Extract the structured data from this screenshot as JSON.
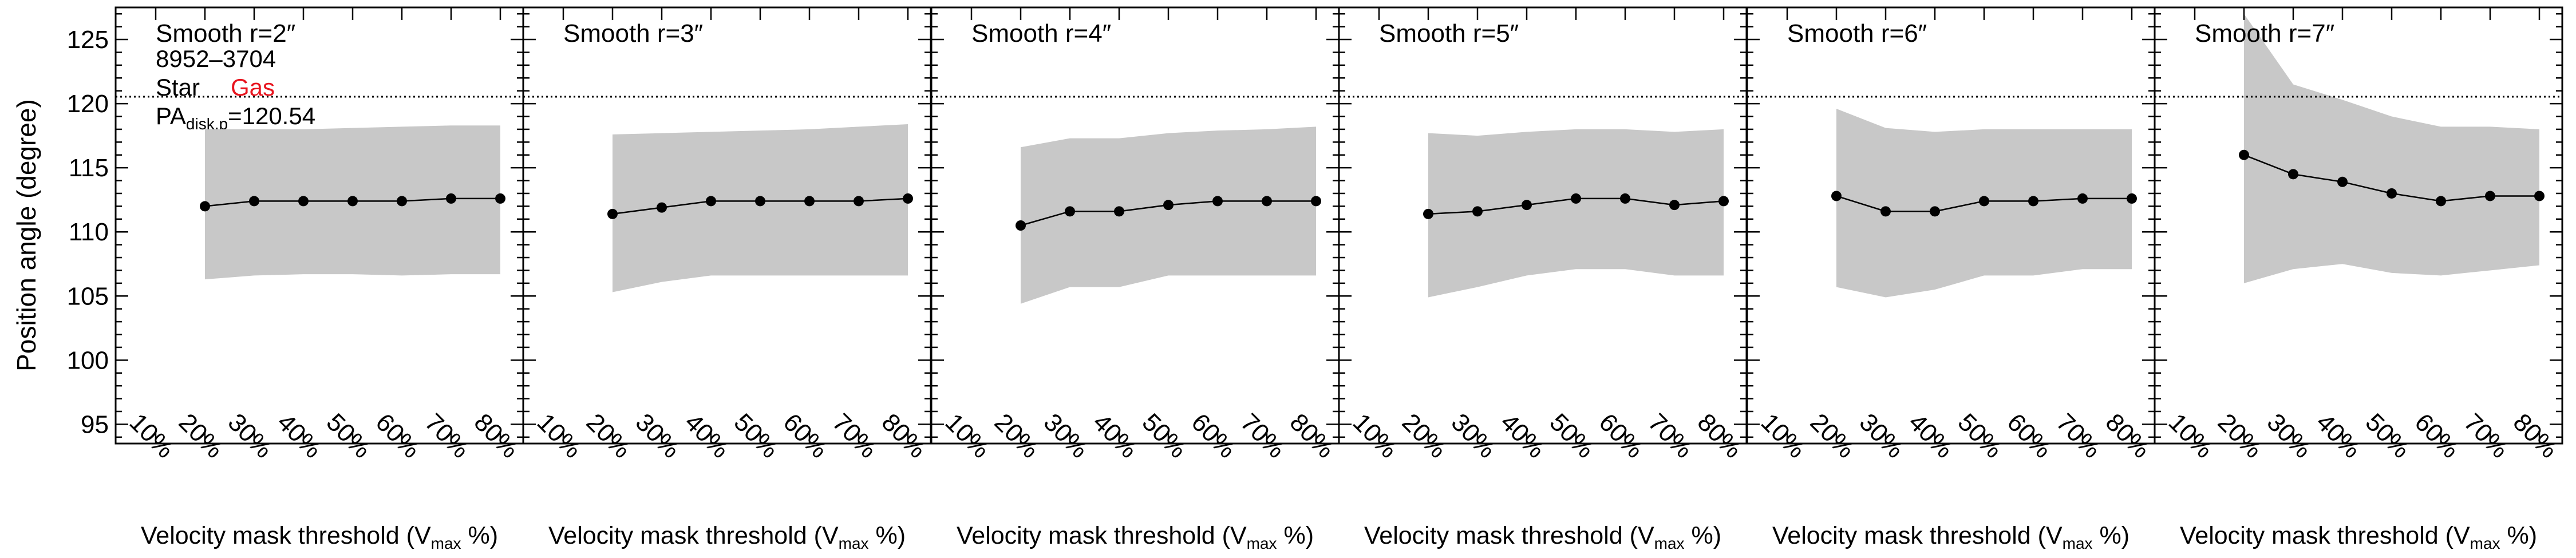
{
  "figure": {
    "ylabel": "Position angle (degree)",
    "xlabel_main": "Velocity mask threshold (V",
    "xlabel_sub": "max",
    "xlabel_end": " %)",
    "info": {
      "galaxy_id": "8952–3704",
      "star_label": "Star",
      "gas_label": "Gas",
      "pa_main": "PA",
      "pa_sub": "disk,p",
      "pa_value": "=120.54"
    },
    "colors": {
      "band": "#c8c8c8",
      "line": "#000000",
      "gas": "#e8141e"
    }
  },
  "chart_data": [
    {
      "type": "line",
      "title": "Smooth r=2″",
      "categories": [
        "10%",
        "20%",
        "30%",
        "40%",
        "50%",
        "60%",
        "70%",
        "80%"
      ],
      "series": [
        {
          "x": [
            "20%",
            "30%",
            "40%",
            "50%",
            "60%",
            "70%",
            "80%"
          ],
          "values": [
            112.0,
            112.4,
            112.4,
            112.4,
            112.4,
            112.6,
            112.6
          ]
        }
      ],
      "band_upper": [
        118.0,
        118.0,
        118.0,
        118.1,
        118.2,
        118.3,
        118.3
      ],
      "band_lower": [
        106.3,
        106.6,
        106.7,
        106.7,
        106.6,
        106.7,
        106.7
      ],
      "ylim": [
        93.5,
        127.5
      ],
      "yticks": [
        95,
        100,
        105,
        110,
        115,
        120,
        125
      ],
      "reference_y": 120.54,
      "grid": false
    },
    {
      "type": "line",
      "title": "Smooth r=3″",
      "categories": [
        "10%",
        "20%",
        "30%",
        "40%",
        "50%",
        "60%",
        "70%",
        "80%"
      ],
      "series": [
        {
          "x": [
            "20%",
            "30%",
            "40%",
            "50%",
            "60%",
            "70%",
            "80%"
          ],
          "values": [
            111.4,
            111.9,
            112.4,
            112.4,
            112.4,
            112.4,
            112.6
          ]
        }
      ],
      "band_upper": [
        117.6,
        117.7,
        117.8,
        117.9,
        118.0,
        118.2,
        118.4
      ],
      "band_lower": [
        105.3,
        106.1,
        106.6,
        106.6,
        106.6,
        106.6,
        106.6
      ],
      "ylim": [
        93.5,
        127.5
      ],
      "yticks": [
        95,
        100,
        105,
        110,
        115,
        120,
        125
      ],
      "reference_y": 120.54,
      "grid": false
    },
    {
      "type": "line",
      "title": "Smooth r=4″",
      "categories": [
        "10%",
        "20%",
        "30%",
        "40%",
        "50%",
        "60%",
        "70%",
        "80%"
      ],
      "series": [
        {
          "x": [
            "20%",
            "30%",
            "40%",
            "50%",
            "60%",
            "70%",
            "80%"
          ],
          "values": [
            110.5,
            111.6,
            111.6,
            112.1,
            112.4,
            112.4,
            112.4
          ]
        }
      ],
      "band_upper": [
        116.6,
        117.3,
        117.3,
        117.7,
        117.9,
        118.0,
        118.2
      ],
      "band_lower": [
        104.4,
        105.7,
        105.7,
        106.6,
        106.6,
        106.6,
        106.6
      ],
      "ylim": [
        93.5,
        127.5
      ],
      "yticks": [
        95,
        100,
        105,
        110,
        115,
        120,
        125
      ],
      "reference_y": 120.54,
      "grid": false
    },
    {
      "type": "line",
      "title": "Smooth r=5″",
      "categories": [
        "10%",
        "20%",
        "30%",
        "40%",
        "50%",
        "60%",
        "70%",
        "80%"
      ],
      "series": [
        {
          "x": [
            "20%",
            "30%",
            "40%",
            "50%",
            "60%",
            "70%",
            "80%"
          ],
          "values": [
            111.4,
            111.6,
            112.1,
            112.6,
            112.6,
            112.1,
            112.4
          ]
        }
      ],
      "band_upper": [
        117.7,
        117.5,
        117.8,
        118.0,
        118.0,
        117.8,
        118.0
      ],
      "band_lower": [
        104.9,
        105.7,
        106.6,
        107.1,
        107.1,
        106.6,
        106.6
      ],
      "ylim": [
        93.5,
        127.5
      ],
      "yticks": [
        95,
        100,
        105,
        110,
        115,
        120,
        125
      ],
      "reference_y": 120.54,
      "grid": false
    },
    {
      "type": "line",
      "title": "Smooth r=6″",
      "categories": [
        "10%",
        "20%",
        "30%",
        "40%",
        "50%",
        "60%",
        "70%",
        "80%"
      ],
      "series": [
        {
          "x": [
            "20%",
            "30%",
            "40%",
            "50%",
            "60%",
            "70%",
            "80%"
          ],
          "values": [
            112.8,
            111.6,
            111.6,
            112.4,
            112.4,
            112.6,
            112.6
          ]
        }
      ],
      "band_upper": [
        119.6,
        118.1,
        117.8,
        118.0,
        118.0,
        118.0,
        118.0
      ],
      "band_lower": [
        105.7,
        104.9,
        105.5,
        106.6,
        106.6,
        107.1,
        107.1
      ],
      "ylim": [
        93.5,
        127.5
      ],
      "yticks": [
        95,
        100,
        105,
        110,
        115,
        120,
        125
      ],
      "reference_y": 120.54,
      "grid": false
    },
    {
      "type": "line",
      "title": "Smooth r=7″",
      "categories": [
        "10%",
        "20%",
        "30%",
        "40%",
        "50%",
        "60%",
        "70%",
        "80%"
      ],
      "series": [
        {
          "x": [
            "20%",
            "30%",
            "40%",
            "50%",
            "60%",
            "70%",
            "80%"
          ],
          "values": [
            116.0,
            114.5,
            113.9,
            113.0,
            112.4,
            112.8,
            112.8
          ]
        }
      ],
      "band_upper": [
        127.0,
        121.5,
        120.3,
        119.0,
        118.2,
        118.2,
        118.0
      ],
      "band_lower": [
        106.0,
        107.1,
        107.5,
        106.8,
        106.6,
        107.0,
        107.4
      ],
      "ylim": [
        93.5,
        127.5
      ],
      "yticks": [
        95,
        100,
        105,
        110,
        115,
        120,
        125
      ],
      "reference_y": 120.54,
      "grid": false
    }
  ]
}
